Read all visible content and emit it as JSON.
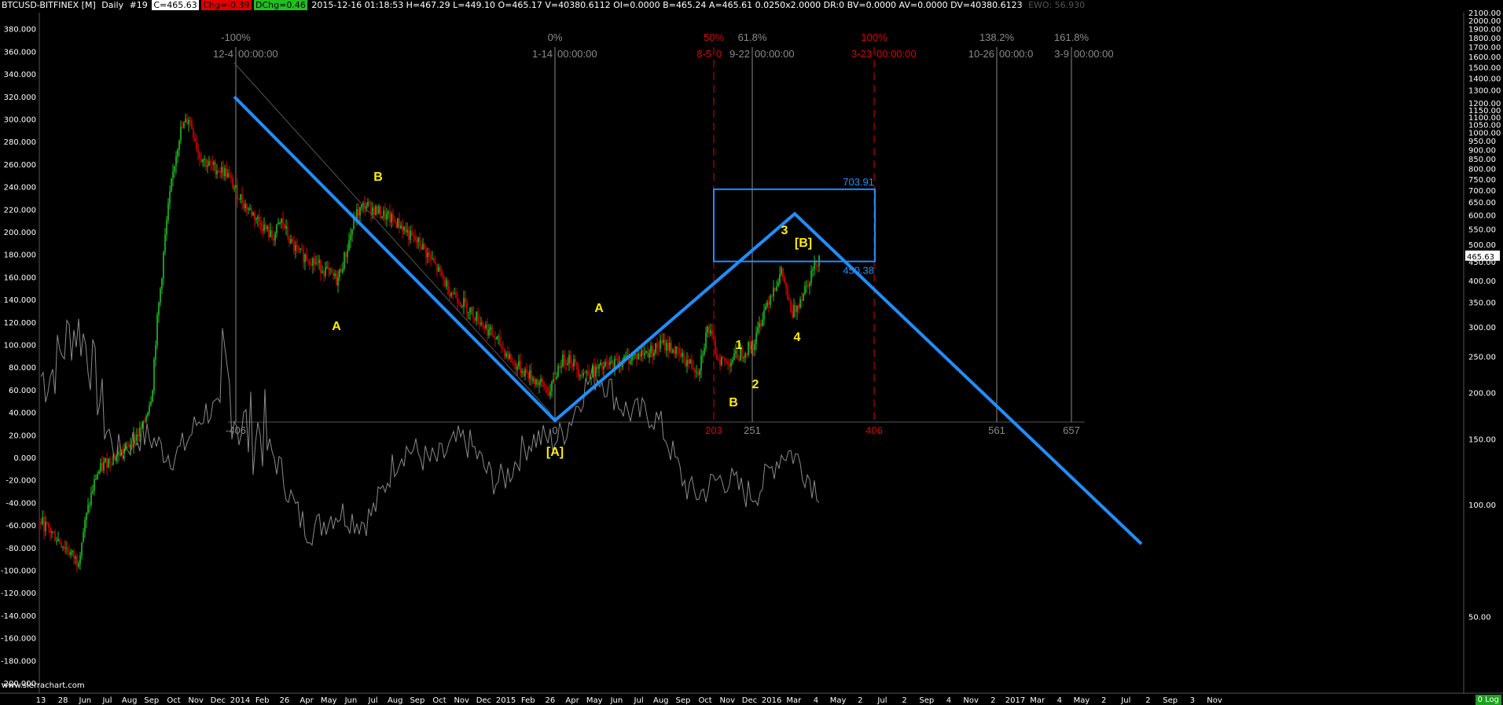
{
  "header": {
    "symbol": "BTCUSD-BITFINEX [M]",
    "timeframe": "Daily",
    "bar_no": "#19",
    "c": "C=465.63",
    "chg": "Chg=-0.39",
    "dchg": "DChg=0.46",
    "stats": "2015-12-16 01:18:53 H=467.29 L=449.10 O=465.17 V=40380.6112 OI=0.0000 B=465.24 A=465.61 0.0250x2.0000 DR:0 BV=0.0000 AV=0.0000 DV=40380.6123",
    "ewo": "EWO: 56.930"
  },
  "watermark": "www.sierrachart.com",
  "scale_mode": "0 Log",
  "colors": {
    "background": "#000000",
    "wave_line": "#1f8fff",
    "wave_label": "#ffee00",
    "fib_red": "#e00000",
    "fib_gray": "#8a8a8a",
    "up_bar": "#21c021",
    "down_bar": "#e00000",
    "oscillator": "#8a8a8a",
    "grid_text": "#ffffff"
  },
  "chart_data": {
    "type": "line",
    "title": "",
    "price_scale": "log",
    "right_axis_ticks": [
      "2100.00",
      "2000.00",
      "1900.00",
      "1800.00",
      "1700.00",
      "1600.00",
      "1500.00",
      "1400.00",
      "1300.00",
      "1200.00",
      "1150.00",
      "1100.00",
      "1050.00",
      "1000.00",
      "950.00",
      "900.00",
      "850.00",
      "800.00",
      "750.00",
      "700.00",
      "650.00",
      "600.00",
      "550.00",
      "500.00",
      "450.00",
      "400.00",
      "350.00",
      "300.00",
      "250.00",
      "200.00",
      "150.00",
      "100.00",
      "50.00"
    ],
    "last_price_label": "465.63",
    "left_axis_ticks": [
      "380.000",
      "360.000",
      "340.000",
      "320.000",
      "300.000",
      "280.000",
      "260.000",
      "240.000",
      "220.000",
      "200.000",
      "180.000",
      "160.000",
      "140.000",
      "120.000",
      "100.000",
      "80.000",
      "60.000",
      "40.000",
      "20.000",
      "0.000",
      "-20.000",
      "-40.000",
      "-60.000",
      "-80.000",
      "-100.000",
      "-120.000",
      "-140.000",
      "-160.000",
      "-180.000",
      "-200.000"
    ],
    "x_axis_ticks": [
      "13",
      "28",
      "Jun",
      "Jul",
      "Aug",
      "Sep",
      "Oct",
      "Nov",
      "Dec",
      "2014",
      "Feb",
      "26",
      "Apr",
      "May",
      "Jun",
      "Jul",
      "Aug",
      "Sep",
      "Oct",
      "Nov",
      "Dec",
      "2015",
      "Feb",
      "26",
      "Apr",
      "May",
      "Jun",
      "Jul",
      "Aug",
      "Sep",
      "Oct",
      "Nov",
      "Dec",
      "2016",
      "Mar",
      "4",
      "May",
      "2",
      "Jul",
      "2",
      "Sep",
      "4",
      "Nov",
      "2",
      "2017",
      "Mar",
      "4",
      "May",
      "2",
      "Jul",
      "2",
      "Sep",
      "3",
      "Nov"
    ],
    "fib_time_lines": [
      {
        "pct": "-100%",
        "date": "12-4",
        "time": "00:00:00",
        "count": "-406",
        "color": "gray"
      },
      {
        "pct": "0%",
        "date": "1-14",
        "time": "00:00:00",
        "count": "0",
        "color": "gray"
      },
      {
        "pct": "50%",
        "date": "8-5",
        "time": "0",
        "count": "203",
        "color": "red"
      },
      {
        "pct": "61.8%",
        "date": "9-22",
        "time": "00:00:00",
        "count": "251",
        "color": "gray"
      },
      {
        "pct": "100%",
        "date": "3-23",
        "time": "00:00:00",
        "count": "406",
        "color": "red"
      },
      {
        "pct": "138.2%",
        "date": "10-26",
        "time": "00:00:0",
        "count": "561",
        "color": "gray"
      },
      {
        "pct": "161.8%",
        "date": "3-9",
        "time": "00:00:00",
        "count": "657",
        "color": "gray"
      }
    ],
    "target_box": {
      "upper": "703.91",
      "lower": "450.38"
    },
    "wave_labels": [
      "B",
      "A",
      "A",
      "[A]",
      "1",
      "2",
      "B",
      "3",
      "4",
      "[B]"
    ],
    "wave_path_prices": [
      1150,
      172,
      610,
      70
    ],
    "price_candles_close_approx": [
      90,
      85,
      80,
      75,
      70,
      95,
      120,
      130,
      135,
      140,
      150,
      160,
      200,
      400,
      700,
      1000,
      1100,
      880,
      820,
      800,
      780,
      700,
      640,
      600,
      560,
      520,
      580,
      500,
      470,
      460,
      440,
      420,
      400,
      480,
      600,
      640,
      620,
      600,
      580,
      560,
      520,
      500,
      460,
      420,
      380,
      360,
      340,
      320,
      300,
      280,
      260,
      240,
      230,
      220,
      210,
      200,
      240,
      250,
      230,
      225,
      230,
      235,
      240,
      245,
      250,
      255,
      260,
      270,
      265,
      250,
      240,
      230,
      300,
      250,
      240,
      250,
      260,
      270,
      330,
      380,
      420,
      320,
      360,
      410,
      465
    ]
  }
}
